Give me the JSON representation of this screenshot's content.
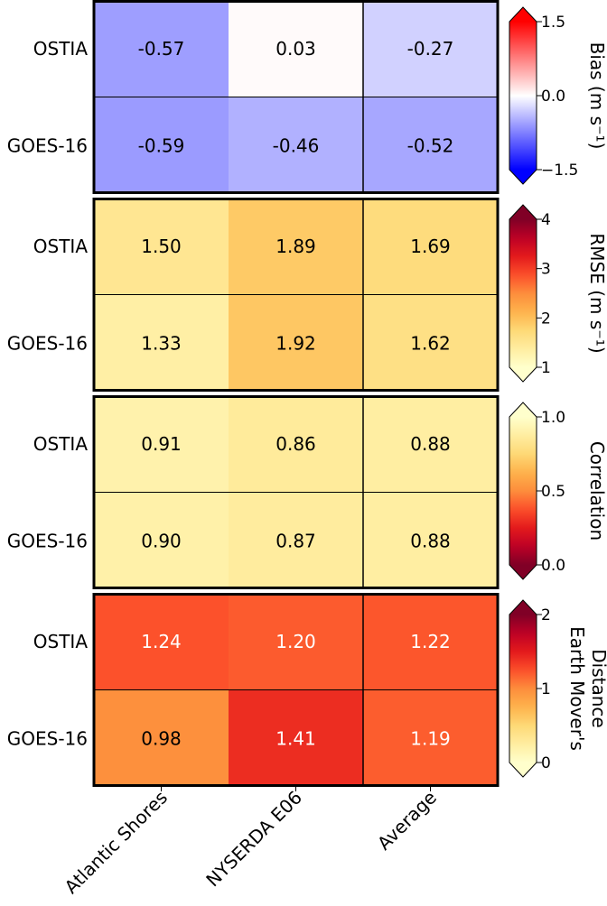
{
  "chart_data": {
    "type": "heatmap",
    "columns": [
      "Atlantic Shores",
      "NYSERDA E06",
      "Average"
    ],
    "rows": [
      "OSTIA",
      "GOES-16"
    ],
    "panels": [
      {
        "metric": "Bias",
        "colorbar_label": "Bias (m s⁻¹)",
        "colormap": "bwr",
        "vmin": -1.5,
        "vmax": 1.5,
        "ticks": [
          "1.5",
          "0.0",
          "−1.5"
        ],
        "tick_values": [
          1.5,
          0.0,
          -1.5
        ],
        "values": [
          [
            -0.57,
            0.03,
            -0.27
          ],
          [
            -0.59,
            -0.46,
            -0.52
          ]
        ],
        "labels": [
          [
            "-0.57",
            "0.03",
            "-0.27"
          ],
          [
            "-0.59",
            "-0.46",
            "-0.52"
          ]
        ]
      },
      {
        "metric": "RMSE",
        "colorbar_label": "RMSE (m s⁻¹)",
        "colormap": "YlOrRd",
        "vmin": 1,
        "vmax": 4,
        "ticks": [
          "4",
          "3",
          "2",
          "1"
        ],
        "tick_values": [
          4,
          3,
          2,
          1
        ],
        "values": [
          [
            1.5,
            1.89,
            1.69
          ],
          [
            1.33,
            1.92,
            1.62
          ]
        ],
        "labels": [
          [
            "1.50",
            "1.89",
            "1.69"
          ],
          [
            "1.33",
            "1.92",
            "1.62"
          ]
        ]
      },
      {
        "metric": "Correlation",
        "colorbar_label": "Correlation",
        "colormap": "YlOrRd_r",
        "vmin": 0.0,
        "vmax": 1.0,
        "ticks": [
          "1.0",
          "0.5",
          "0.0"
        ],
        "tick_values": [
          1.0,
          0.5,
          0.0
        ],
        "values": [
          [
            0.91,
            0.86,
            0.88
          ],
          [
            0.9,
            0.87,
            0.88
          ]
        ],
        "labels": [
          [
            "0.91",
            "0.86",
            "0.88"
          ],
          [
            "0.90",
            "0.87",
            "0.88"
          ]
        ]
      },
      {
        "metric": "Earth Mover's Distance",
        "colorbar_label": "Earth Mover's Distance",
        "colorbar_label_lines": [
          "Earth Mover's",
          "Distance"
        ],
        "colormap": "YlOrRd",
        "vmin": 0,
        "vmax": 2,
        "ticks": [
          "2",
          "1",
          "0"
        ],
        "tick_values": [
          2,
          1,
          0
        ],
        "values": [
          [
            1.24,
            1.2,
            1.22
          ],
          [
            0.98,
            1.41,
            1.19
          ]
        ],
        "labels": [
          [
            "1.24",
            "1.20",
            "1.22"
          ],
          [
            "0.98",
            "1.41",
            "1.19"
          ]
        ]
      }
    ]
  }
}
